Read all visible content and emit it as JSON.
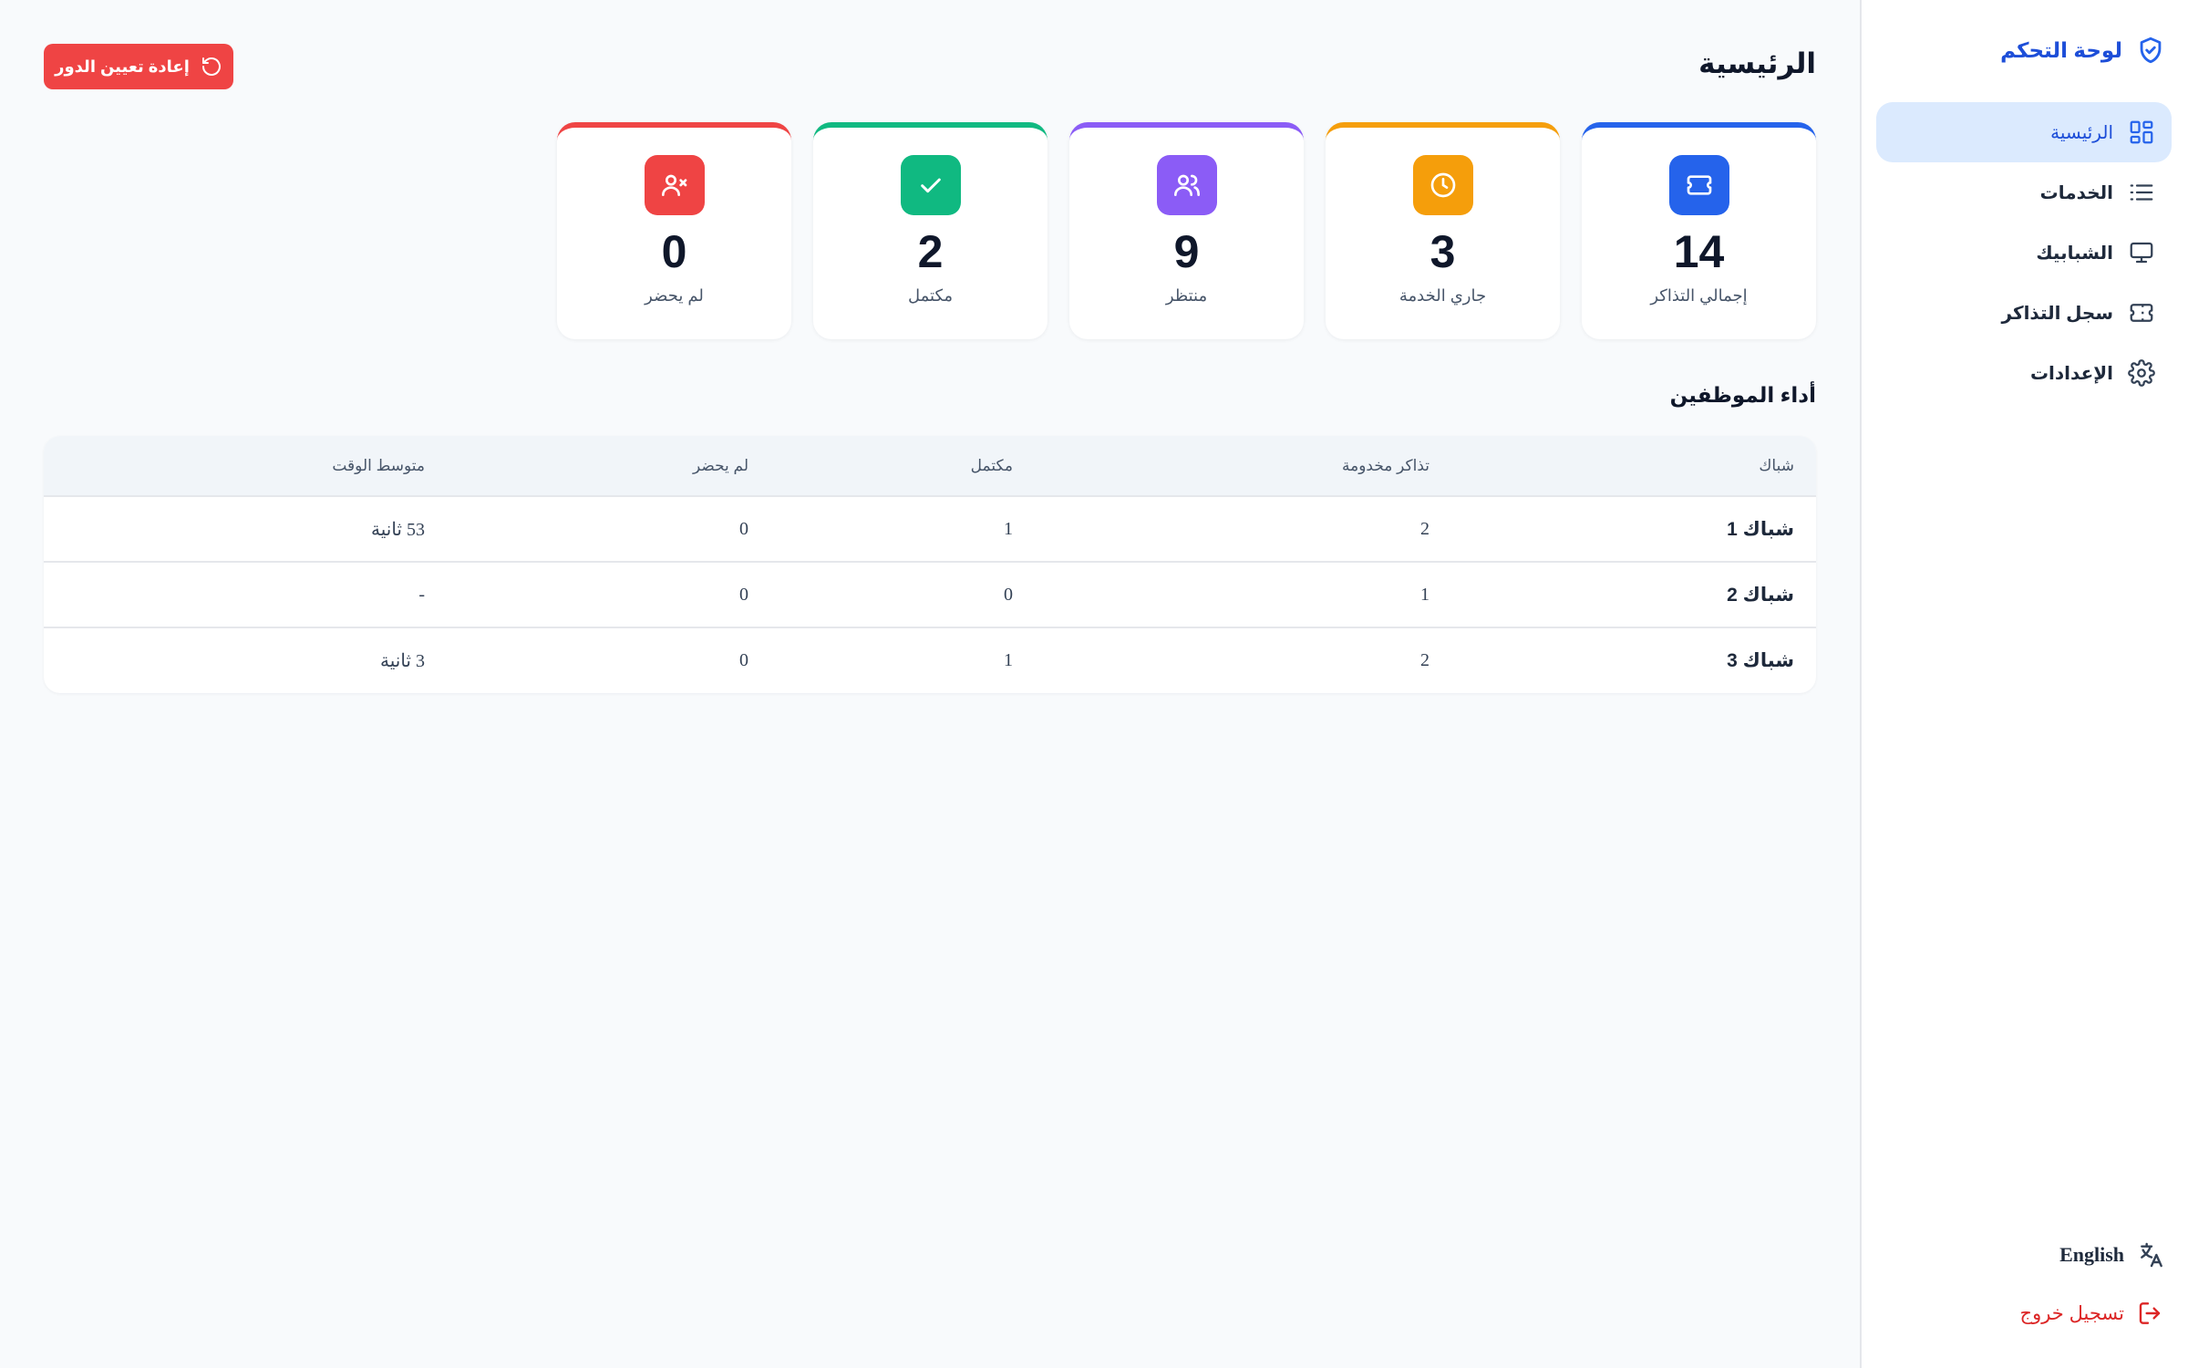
{
  "sidebar": {
    "brand": "لوحة التحكم",
    "items": [
      {
        "label": "الرئيسية",
        "icon": "grid-icon",
        "active": true
      },
      {
        "label": "الخدمات",
        "icon": "list-icon"
      },
      {
        "label": "الشبابيك",
        "icon": "monitor-icon"
      },
      {
        "label": "سجل التذاكر",
        "icon": "ticket-icon"
      },
      {
        "label": "الإعدادات",
        "icon": "gear-icon"
      }
    ],
    "language": "English",
    "logout": "تسجيل خروج"
  },
  "header": {
    "title": "الرئيسية",
    "reset_button": "إعادة تعيين الدور"
  },
  "stats": [
    {
      "value": "14",
      "label": "إجمالي التذاكر",
      "color": "#2563eb",
      "icon": "ticket-icon"
    },
    {
      "value": "3",
      "label": "جاري الخدمة",
      "color": "#f59e0b",
      "icon": "clock-icon"
    },
    {
      "value": "9",
      "label": "منتظر",
      "color": "#8b5cf6",
      "icon": "users-icon"
    },
    {
      "value": "2",
      "label": "مكتمل",
      "color": "#10b981",
      "icon": "check-icon"
    },
    {
      "value": "0",
      "label": "لم يحضر",
      "color": "#ef4444",
      "icon": "user-x-icon"
    }
  ],
  "performance": {
    "title": "أداء الموظفين",
    "columns": [
      "شباك",
      "تذاكر مخدومة",
      "مكتمل",
      "لم يحضر",
      "متوسط الوقت"
    ],
    "rows": [
      [
        "شباك 1",
        "2",
        "1",
        "0",
        "53 ثانية"
      ],
      [
        "شباك 2",
        "1",
        "0",
        "0",
        "-"
      ],
      [
        "شباك 3",
        "2",
        "1",
        "0",
        "3 ثانية"
      ]
    ]
  }
}
